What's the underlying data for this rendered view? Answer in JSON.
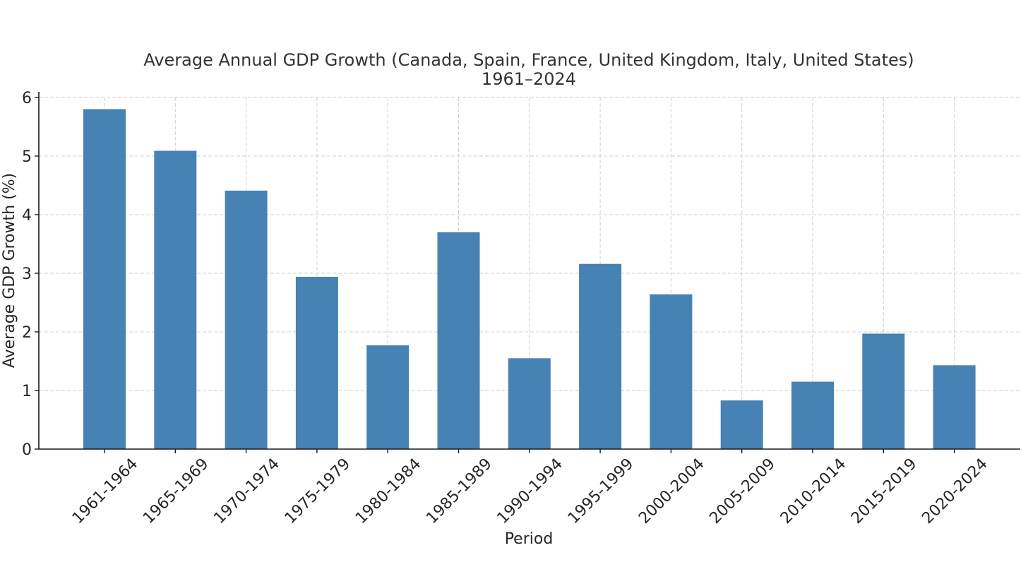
{
  "chart_data": {
    "type": "bar",
    "title": "Average Annual GDP Growth (Canada, Spain, France, United Kingdom, Italy, United States)",
    "subtitle": "1961–2024",
    "xlabel": "Period",
    "ylabel": "Average GDP Growth (%)",
    "categories": [
      "1961-1964",
      "1965-1969",
      "1970-1974",
      "1975-1979",
      "1980-1984",
      "1985-1989",
      "1990-1994",
      "1995-1999",
      "2000-2004",
      "2005-2009",
      "2010-2014",
      "2015-2019",
      "2020-2024"
    ],
    "values": [
      5.8,
      5.09,
      4.41,
      2.94,
      1.77,
      3.7,
      1.55,
      3.16,
      2.64,
      0.83,
      1.15,
      1.97,
      1.43
    ],
    "ylim": [
      0,
      6
    ],
    "yticks": [
      "0",
      "1",
      "2",
      "3",
      "4",
      "5",
      "6"
    ],
    "grid": true,
    "bar_color": "#4682b4"
  }
}
